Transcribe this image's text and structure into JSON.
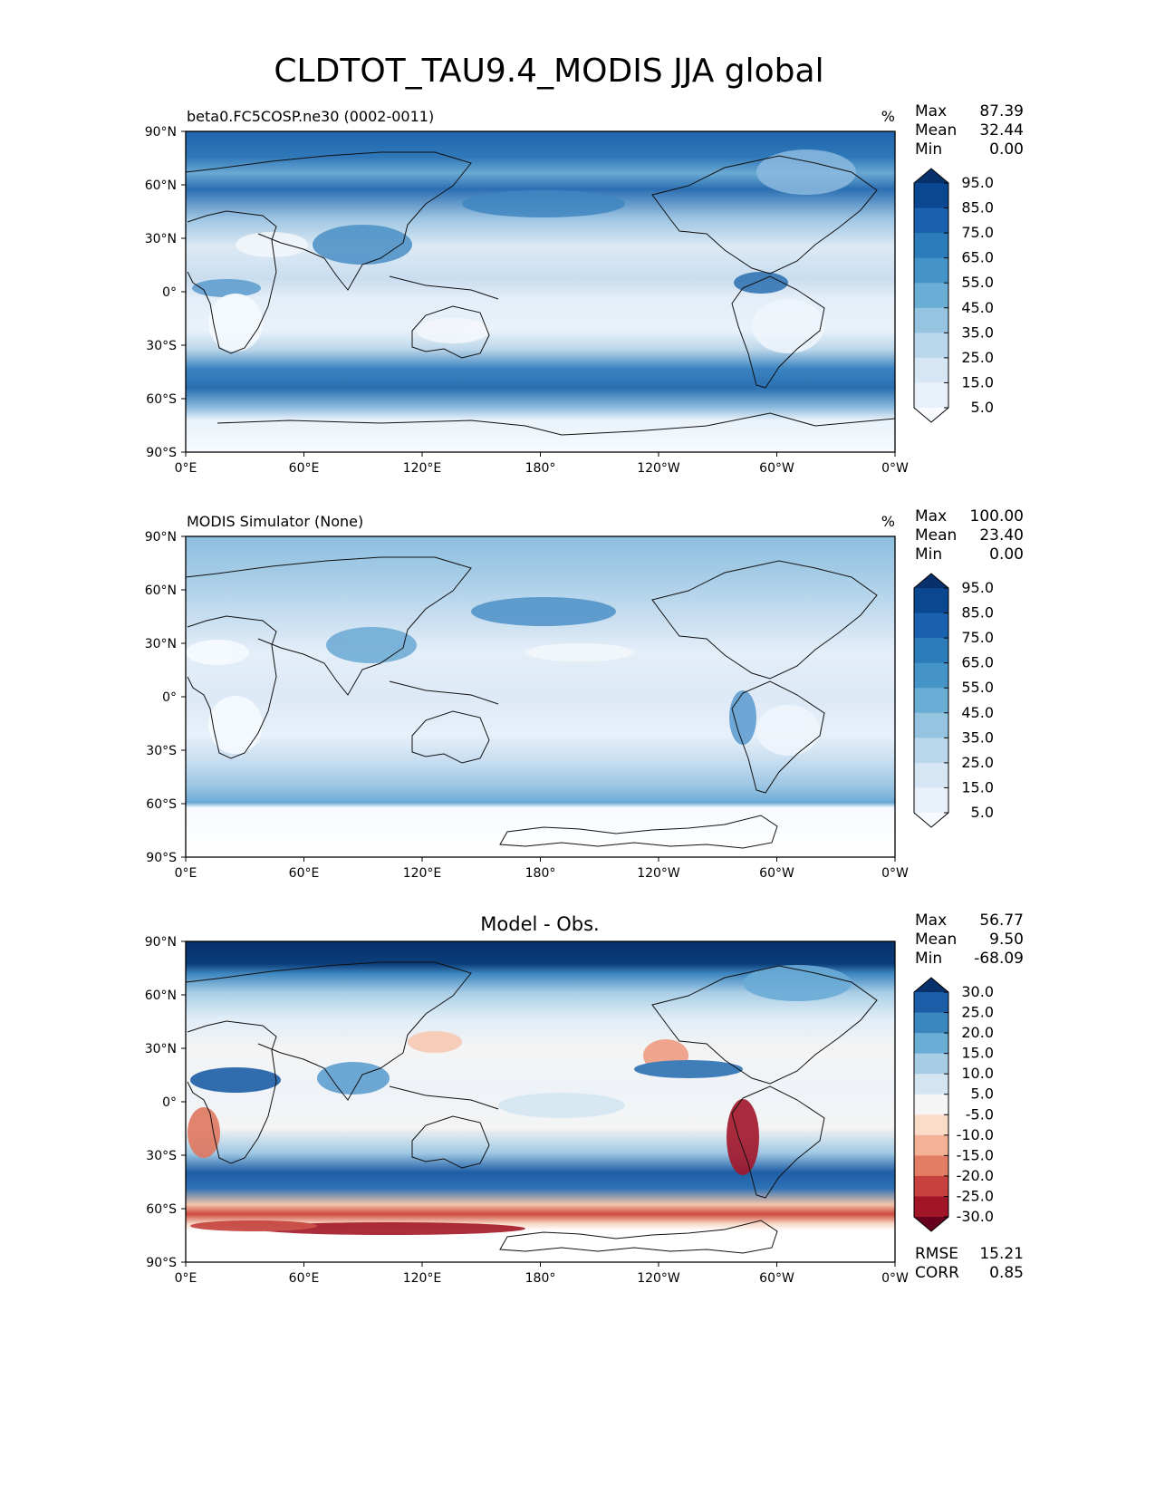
{
  "title": "CLDTOT_TAU9.4_MODIS JJA global",
  "x_ticks": [
    "0°E",
    "60°E",
    "120°E",
    "180°",
    "120°W",
    "60°W",
    "0°W"
  ],
  "y_ticks": [
    "90°N",
    "60°N",
    "30°N",
    "0°",
    "30°S",
    "60°S",
    "90°S"
  ],
  "stat_labels": {
    "max": "Max",
    "mean": "Mean",
    "min": "Min",
    "rmse": "RMSE",
    "corr": "CORR"
  },
  "panels": [
    {
      "id": "test",
      "left_title": "beta0.FC5COSP.ne30 (0002-0011)",
      "center_title": "",
      "units": "%",
      "stats": {
        "max": "87.39",
        "mean": "32.44",
        "min": "0.00"
      },
      "colorbar": {
        "levels": [
          "95.0",
          "85.0",
          "75.0",
          "65.0",
          "55.0",
          "45.0",
          "35.0",
          "25.0",
          "15.0",
          "5.0"
        ],
        "colors_top_to_bottom": [
          "#08306b",
          "#0b4690",
          "#1a62ad",
          "#2c7bba",
          "#4594c7",
          "#6aadd5",
          "#94c4df",
          "#b9d6ea",
          "#d6e6f4",
          "#e9f2fa",
          "#f7fbff"
        ]
      }
    },
    {
      "id": "reference",
      "left_title": "MODIS Simulator (None)",
      "center_title": "",
      "units": "%",
      "stats": {
        "max": "100.00",
        "mean": "23.40",
        "min": "0.00"
      },
      "colorbar": {
        "levels": [
          "95.0",
          "85.0",
          "75.0",
          "65.0",
          "55.0",
          "45.0",
          "35.0",
          "25.0",
          "15.0",
          "5.0"
        ],
        "colors_top_to_bottom": [
          "#08306b",
          "#0b4690",
          "#1a62ad",
          "#2c7bba",
          "#4594c7",
          "#6aadd5",
          "#94c4df",
          "#b9d6ea",
          "#d6e6f4",
          "#e9f2fa",
          "#f7fbff"
        ]
      }
    },
    {
      "id": "diff",
      "left_title": "",
      "center_title": "Model - Obs.",
      "units": "",
      "stats": {
        "max": "56.77",
        "mean": "9.50",
        "min": "-68.09",
        "rmse": "15.21",
        "corr": "0.85"
      },
      "colorbar": {
        "levels": [
          "30.0",
          "25.0",
          "20.0",
          "15.0",
          "10.0",
          "5.0",
          "-5.0",
          "-10.0",
          "-15.0",
          "-20.0",
          "-25.0",
          "-30.0"
        ],
        "colors_top_to_bottom": [
          "#08306b",
          "#1c5da8",
          "#3a87c0",
          "#6aadd5",
          "#a6cde4",
          "#d3e5f1",
          "#f5f5f5",
          "#fbdcc9",
          "#f3b295",
          "#e27c63",
          "#c8413e",
          "#a11527",
          "#67001f"
        ]
      }
    }
  ]
}
